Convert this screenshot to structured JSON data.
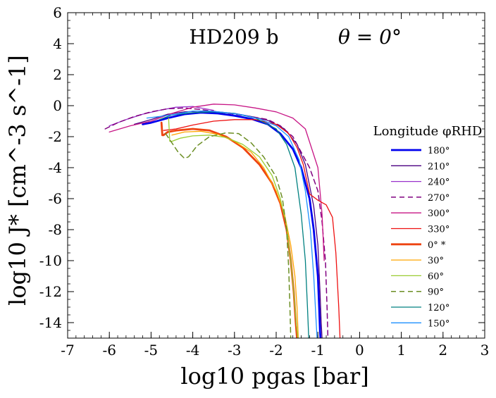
{
  "chart_data": {
    "type": "line",
    "title": "HD209 b",
    "title_angle": "θ = 0°",
    "xlabel": "log10 pgas [bar]",
    "ylabel": "log10 J* [cm^-3 s^-1]",
    "xlim": [
      -7,
      3
    ],
    "ylim": [
      -15,
      6
    ],
    "xticks": [
      -7,
      -6,
      -5,
      -4,
      -3,
      -2,
      -1,
      0,
      1,
      2,
      3
    ],
    "yticks": [
      -14,
      -12,
      -10,
      -8,
      -6,
      -4,
      -2,
      0,
      2,
      4,
      6
    ],
    "legend_title": "Longitude φRHD",
    "legend_placement": "right",
    "series": [
      {
        "name": "180°",
        "color": "#0000ee",
        "width": 2.8,
        "dash": "",
        "x": [
          -5.2,
          -5.0,
          -4.6,
          -4.2,
          -3.8,
          -3.4,
          -3.0,
          -2.6,
          -2.2,
          -1.9,
          -1.6,
          -1.4,
          -1.2,
          -1.1,
          -1.0,
          -0.97,
          -0.95,
          -0.94
        ],
        "y": [
          -1.2,
          -1.1,
          -0.8,
          -0.55,
          -0.45,
          -0.5,
          -0.65,
          -0.85,
          -1.2,
          -1.8,
          -2.8,
          -4.0,
          -6.0,
          -8.0,
          -11.0,
          -13.0,
          -14.5,
          -15.0
        ]
      },
      {
        "name": "210°",
        "color": "#4b0082",
        "width": 1.3,
        "dash": "",
        "x": [
          -5.4,
          -5.0,
          -4.6,
          -4.2,
          -3.8,
          -3.4,
          -3.0,
          -2.6,
          -2.2,
          -1.8,
          -1.5,
          -1.3,
          -1.1,
          -1.0,
          -0.95,
          -0.92,
          -0.9
        ],
        "y": [
          -1.2,
          -0.9,
          -0.55,
          -0.4,
          -0.35,
          -0.4,
          -0.5,
          -0.7,
          -0.95,
          -1.5,
          -2.5,
          -3.8,
          -6.5,
          -9.0,
          -12.0,
          -14.0,
          -15.0
        ]
      },
      {
        "name": "240°",
        "color": "#9932cc",
        "width": 1.3,
        "dash": "",
        "x": [
          -6.0,
          -5.6,
          -5.2,
          -4.8,
          -4.4,
          -4.0,
          -3.5
        ],
        "y": [
          -1.3,
          -0.9,
          -0.55,
          -0.3,
          -0.1,
          -0.05,
          -0.3
        ]
      },
      {
        "name": "270°",
        "color": "#800080",
        "width": 1.5,
        "dash": "7,5",
        "x": [
          -6.1,
          -5.8,
          -5.4,
          -5.0,
          -4.6,
          -4.2,
          -3.8,
          -3.4,
          -3.0,
          -2.6,
          -2.2,
          -1.9,
          -1.6,
          -1.4,
          -1.2,
          -1.0,
          -0.9,
          -0.82,
          -0.78,
          -0.76
        ],
        "y": [
          -1.5,
          -1.1,
          -0.7,
          -0.4,
          -0.2,
          -0.15,
          -0.25,
          -0.4,
          -0.55,
          -0.7,
          -0.9,
          -1.3,
          -2.0,
          -3.0,
          -4.0,
          -5.5,
          -7.5,
          -10.0,
          -13.0,
          -15.0
        ]
      },
      {
        "name": "300°",
        "color": "#c71585",
        "width": 1.3,
        "dash": "",
        "x": [
          -6.0,
          -5.5,
          -5.0,
          -4.5,
          -4.0,
          -3.5,
          -3.0,
          -2.5,
          -2.0,
          -1.6,
          -1.3,
          -1.0,
          -0.9,
          -0.85
        ],
        "y": [
          -1.7,
          -1.3,
          -1.0,
          -0.5,
          -0.1,
          0.1,
          0.05,
          -0.15,
          -0.4,
          -0.8,
          -1.5,
          -4.0,
          -7.0,
          -10.0
        ]
      },
      {
        "name": "330°",
        "color": "#ee1111",
        "width": 1.3,
        "dash": "",
        "x": [
          -4.7,
          -4.4,
          -4.0,
          -3.5,
          -3.0,
          -2.5,
          -2.0,
          -1.7,
          -1.5,
          -1.35,
          -1.2,
          -1.0,
          -0.8,
          -0.65,
          -0.57,
          -0.5,
          -0.47
        ],
        "y": [
          -1.6,
          -1.5,
          -1.25,
          -1.0,
          -0.9,
          -0.9,
          -1.2,
          -1.8,
          -2.7,
          -3.8,
          -5.7,
          -6.1,
          -6.4,
          -7.2,
          -9.5,
          -13.0,
          -15.0
        ]
      },
      {
        "name": "0° *",
        "color": "#ee4411",
        "width": 2.8,
        "dash": "",
        "x": [
          -4.75,
          -4.73,
          -4.7,
          -4.6,
          -4.4,
          -4.0,
          -3.6,
          -3.2,
          -2.8,
          -2.4,
          -2.1,
          -1.9,
          -1.75,
          -1.65,
          -1.58,
          -1.53,
          -1.5
        ],
        "y": [
          -1.1,
          -1.9,
          -1.9,
          -1.7,
          -1.6,
          -1.5,
          -1.6,
          -2.0,
          -2.7,
          -3.8,
          -5.0,
          -6.3,
          -8.0,
          -10.0,
          -12.0,
          -14.0,
          -15.0
        ]
      },
      {
        "name": "30°",
        "color": "#ffa500",
        "width": 1.3,
        "dash": "",
        "x": [
          -4.5,
          -4.2,
          -3.8,
          -3.4,
          -3.0,
          -2.6,
          -2.3,
          -2.0,
          -1.8,
          -1.65,
          -1.55,
          -1.5,
          -1.47
        ],
        "y": [
          -1.9,
          -1.7,
          -1.65,
          -1.85,
          -2.3,
          -3.0,
          -4.0,
          -5.5,
          -7.0,
          -9.0,
          -11.0,
          -13.0,
          -15.0
        ]
      },
      {
        "name": "60°",
        "color": "#9acd32",
        "width": 1.3,
        "dash": "",
        "x": [
          -4.58,
          -4.55,
          -4.5,
          -4.3,
          -4.0,
          -3.6,
          -3.2,
          -2.8,
          -2.4,
          -2.1,
          -1.9,
          -1.75,
          -1.65,
          -1.58,
          -1.52,
          -1.48
        ],
        "y": [
          -0.8,
          -2.3,
          -2.3,
          -2.1,
          -1.95,
          -1.9,
          -2.05,
          -2.5,
          -3.3,
          -4.5,
          -6.0,
          -7.8,
          -10.0,
          -12.0,
          -14.0,
          -15.0
        ]
      },
      {
        "name": "90°",
        "color": "#6b8e23",
        "width": 1.5,
        "dash": "7,5",
        "x": [
          -4.65,
          -4.5,
          -4.35,
          -4.2,
          -4.1,
          -3.9,
          -3.6,
          -3.2,
          -2.9,
          -2.6,
          -2.3,
          -2.0,
          -1.85,
          -1.75,
          -1.7,
          -1.67,
          -1.65
        ],
        "y": [
          -1.8,
          -2.4,
          -3.0,
          -3.4,
          -3.3,
          -2.6,
          -2.0,
          -1.75,
          -1.8,
          -2.4,
          -3.3,
          -4.6,
          -6.0,
          -8.0,
          -10.5,
          -13.0,
          -15.0
        ]
      },
      {
        "name": "120°",
        "color": "#008080",
        "width": 1.3,
        "dash": "",
        "x": [
          -4.8,
          -4.5,
          -4.0,
          -3.5,
          -3.0,
          -2.5,
          -2.0,
          -1.75,
          -1.55,
          -1.4,
          -1.3,
          -1.25,
          -1.22
        ],
        "y": [
          -0.9,
          -0.6,
          -0.45,
          -0.4,
          -0.5,
          -0.8,
          -1.5,
          -2.5,
          -4.0,
          -7.0,
          -10.0,
          -13.0,
          -15.0
        ]
      },
      {
        "name": "150°",
        "color": "#1e90ff",
        "width": 1.3,
        "dash": "",
        "x": [
          -5.1,
          -4.8,
          -4.4,
          -4.0,
          -3.6,
          -3.2,
          -2.8,
          -2.4,
          -2.0,
          -1.7,
          -1.45,
          -1.3,
          -1.18,
          -1.1,
          -1.05,
          -1.02
        ],
        "y": [
          -0.8,
          -0.7,
          -0.55,
          -0.35,
          -0.35,
          -0.45,
          -0.6,
          -0.85,
          -1.3,
          -2.0,
          -3.5,
          -5.5,
          -8.0,
          -11.0,
          -13.5,
          -15.0
        ]
      }
    ]
  }
}
